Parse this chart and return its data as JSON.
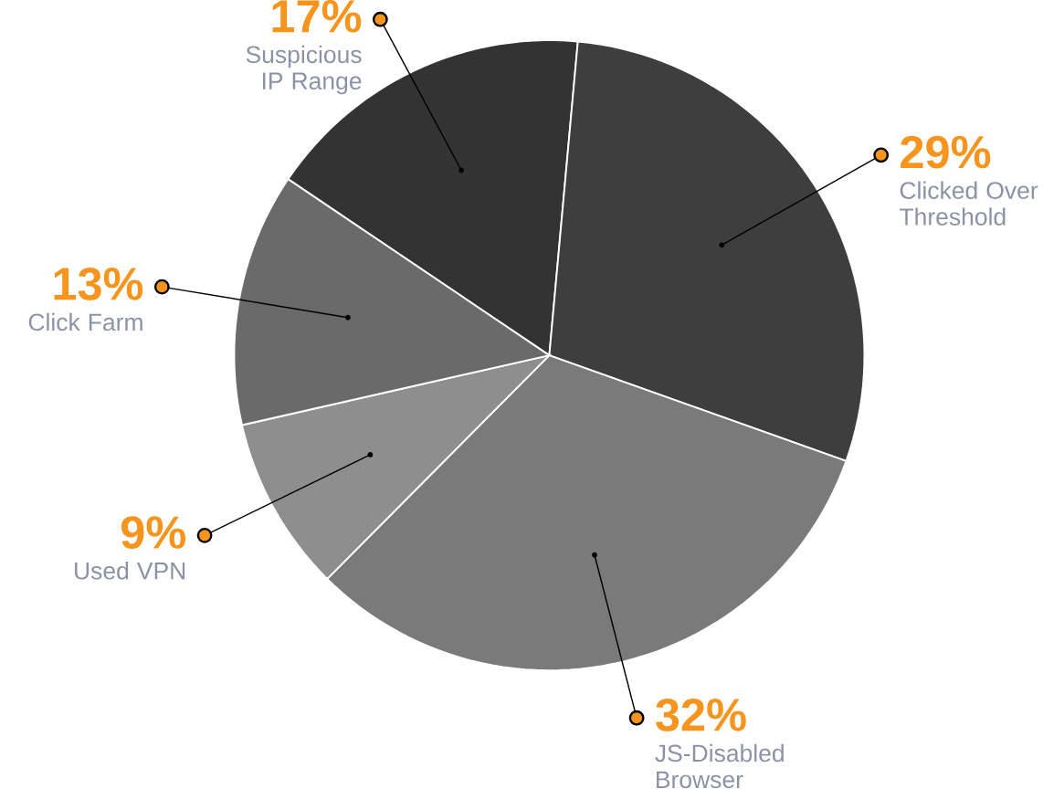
{
  "chart_data": {
    "type": "pie",
    "categories": [
      "Suspicious IP Range",
      "Clicked Over Threshold",
      "JS-Disabled Browser",
      "Used VPN",
      "Click Farm"
    ],
    "values": [
      17,
      29,
      32,
      9,
      13
    ],
    "value_labels": [
      "17%",
      "29%",
      "32%",
      "9%",
      "13%"
    ],
    "colors": [
      "#333333",
      "#3e3e3e",
      "#7a7a7a",
      "#8e8e8e",
      "#6a6a6a"
    ]
  }
}
